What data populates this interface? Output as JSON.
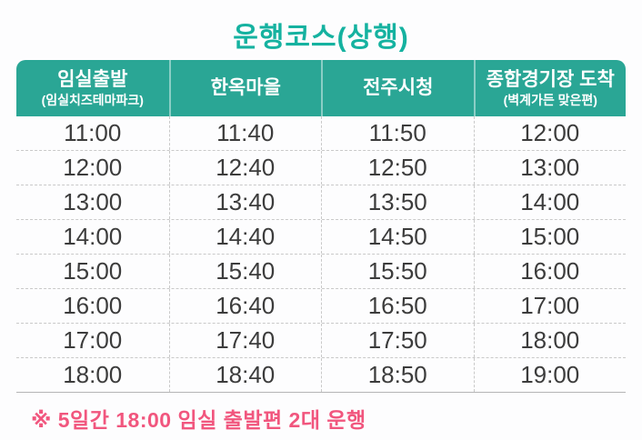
{
  "title": "운행코스(상행)",
  "table": {
    "columns": [
      {
        "label": "임실출발",
        "sublabel": "(임실치즈테마파크)"
      },
      {
        "label": "한옥마을",
        "sublabel": ""
      },
      {
        "label": "전주시청",
        "sublabel": ""
      },
      {
        "label": "종합경기장 도착",
        "sublabel": "(벽계가든 맞은편)"
      }
    ],
    "rows": [
      [
        "11:00",
        "11:40",
        "11:50",
        "12:00"
      ],
      [
        "12:00",
        "12:40",
        "12:50",
        "13:00"
      ],
      [
        "13:00",
        "13:40",
        "13:50",
        "14:00"
      ],
      [
        "14:00",
        "14:40",
        "14:50",
        "15:00"
      ],
      [
        "15:00",
        "15:40",
        "15:50",
        "16:00"
      ],
      [
        "16:00",
        "16:40",
        "16:50",
        "17:00"
      ],
      [
        "17:00",
        "17:40",
        "17:50",
        "18:00"
      ],
      [
        "18:00",
        "18:40",
        "18:50",
        "19:00"
      ]
    ]
  },
  "footnote": "※ 5일간 18:00 임실 출발편 2대 운행",
  "colors": {
    "title": "#15b2a0",
    "header_bg": "#2aa695",
    "header_text": "#ffffff",
    "cell_text": "#3c3c3c",
    "grid_dashed": "#c9c9c9",
    "table_bottom_line": "#b5b5b5",
    "footnote": "#f1567e",
    "background": "#fdfdfe"
  }
}
